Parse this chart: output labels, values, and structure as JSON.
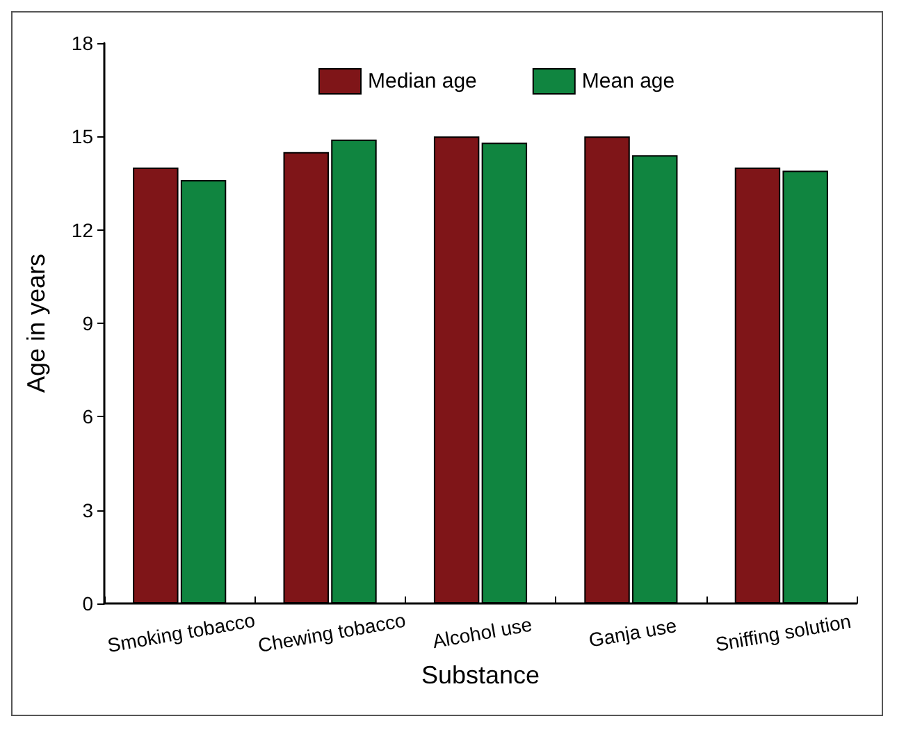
{
  "chart_data": {
    "type": "bar",
    "xlabel": "Substance",
    "ylabel": "Age in years",
    "categories": [
      "Smoking tobacco",
      "Chewing tobacco",
      "Alcohol use",
      "Ganja use",
      "Sniffing solution"
    ],
    "series": [
      {
        "name": "Median age",
        "color": "#7f1518",
        "values": [
          14,
          14.5,
          15,
          15,
          14
        ]
      },
      {
        "name": "Mean age",
        "color": "#108540",
        "values": [
          13.6,
          14.9,
          14.8,
          14.4,
          13.9
        ]
      }
    ],
    "ylim": [
      0,
      18
    ],
    "yticks": [
      0,
      3,
      6,
      9,
      12,
      15,
      18
    ],
    "grid": false,
    "legend": "top"
  }
}
